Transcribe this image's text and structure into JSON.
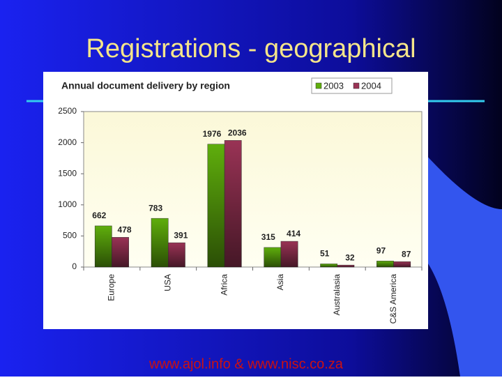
{
  "slide": {
    "title": "Registrations - geographical",
    "footer": "www.ajol.info  &  www.nisc.co.za"
  },
  "chart_data": {
    "type": "bar",
    "title": "Annual document delivery by region",
    "categories": [
      "Europe",
      "USA",
      "Africa",
      "Asia",
      "Australasia",
      "C&S America"
    ],
    "series": [
      {
        "name": "2003",
        "color": "#5fae0c",
        "values": [
          662,
          783,
          1976,
          315,
          51,
          97
        ]
      },
      {
        "name": "2004",
        "color": "#993355",
        "values": [
          478,
          391,
          2036,
          414,
          32,
          87
        ]
      }
    ],
    "ylim": [
      0,
      2500
    ],
    "yticks": [
      0,
      500,
      1000,
      1500,
      2000,
      2500
    ],
    "legend": "top-right"
  }
}
